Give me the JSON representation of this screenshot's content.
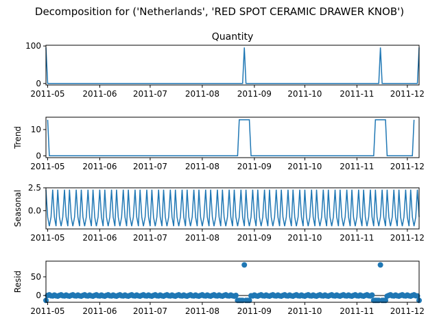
{
  "suptitle": "Decomposition for ('Netherlands', 'RED SPOT CERAMIC DRAWER KNOB')",
  "x_ticks": [
    "2011-05",
    "2011-06",
    "2011-07",
    "2011-08",
    "2011-09",
    "2011-10",
    "2011-11",
    "2011-12"
  ],
  "line_color": "#1f77b4",
  "chart_data": [
    {
      "type": "line",
      "title": "Quantity",
      "ylabel": "",
      "x_range": [
        "2011-04-30",
        "2011-12-08"
      ],
      "ylim": [
        -4,
        102
      ],
      "yticks": [
        "0",
        "100"
      ],
      "series": [
        {
          "points": [
            [
              "2011-04-30",
              96
            ],
            [
              "2011-05-01",
              0
            ],
            [
              "2011-08-25",
              0
            ],
            [
              "2011-08-26",
              96
            ],
            [
              "2011-08-27",
              0
            ],
            [
              "2011-11-14",
              0
            ],
            [
              "2011-11-15",
              96
            ],
            [
              "2011-11-16",
              0
            ],
            [
              "2011-12-07",
              0
            ],
            [
              "2011-12-08",
              96
            ]
          ]
        }
      ]
    },
    {
      "type": "line",
      "title": "",
      "ylabel": "Trend",
      "x_range": [
        "2011-04-30",
        "2011-12-08"
      ],
      "ylim": [
        -0.7,
        14.7
      ],
      "yticks": [
        "0",
        "10"
      ],
      "series": [
        {
          "points": [
            [
              "2011-05-01",
              13.7
            ],
            [
              "2011-05-02",
              0
            ],
            [
              "2011-08-22",
              0
            ],
            [
              "2011-08-23",
              13.7
            ],
            [
              "2011-08-29",
              13.7
            ],
            [
              "2011-08-30",
              0
            ],
            [
              "2011-11-11",
              0
            ],
            [
              "2011-11-12",
              13.7
            ],
            [
              "2011-11-18",
              13.7
            ],
            [
              "2011-11-19",
              0
            ],
            [
              "2011-12-04",
              0
            ],
            [
              "2011-12-05",
              13.7
            ]
          ]
        }
      ]
    },
    {
      "type": "line",
      "title": "",
      "ylabel": "Seasonal",
      "x_range": [
        "2011-04-30",
        "2011-12-08"
      ],
      "ylim": [
        -2.0,
        2.5
      ],
      "yticks": [
        "0.0",
        "2.5"
      ],
      "period_pattern": [
        2.3,
        -0.7,
        -1.7,
        -0.7,
        2.3,
        -0.7,
        -1.7
      ],
      "x_start": "2011-04-30",
      "x_end": "2011-12-08"
    },
    {
      "type": "scatter",
      "title": "",
      "ylabel": "Resid",
      "x_range": [
        "2011-04-30",
        "2011-12-08"
      ],
      "ylim": [
        -18,
        92
      ],
      "yticks": [
        "0",
        "50"
      ],
      "baseline": 0,
      "outliers": [
        [
          "2011-08-26",
          82
        ],
        [
          "2011-11-15",
          82
        ]
      ],
      "low_ranges": [
        [
          "2011-08-22",
          "2011-08-29"
        ],
        [
          "2011-11-11",
          "2011-11-18"
        ]
      ],
      "low_value": -13
    }
  ]
}
